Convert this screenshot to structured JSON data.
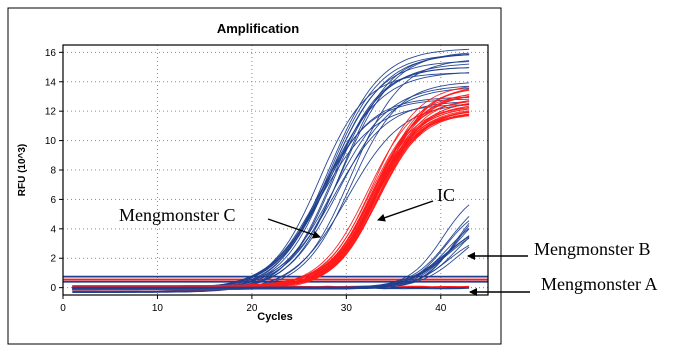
{
  "chart_data": {
    "type": "line",
    "title": "Amplification",
    "xlabel": "Cycles",
    "ylabel": "RFU (10^3)",
    "xlim": [
      0,
      45
    ],
    "ylim": [
      -0.5,
      16.5
    ],
    "x_ticks": [
      0,
      10,
      20,
      30,
      40
    ],
    "y_ticks": [
      0,
      2,
      4,
      6,
      8,
      10,
      12,
      14,
      16
    ],
    "grid": "dotted",
    "cycles": [
      1,
      43
    ],
    "groups": [
      {
        "key": "C",
        "color": "#1f3f8f",
        "count": 20,
        "midpoint": [
          26.8,
          30.6
        ],
        "slope": [
          0.34,
          0.4
        ],
        "plateau": [
          12.6,
          16.4
        ],
        "baseline": [
          -0.35,
          0.05
        ]
      },
      {
        "key": "IC",
        "color": "#ff1a1a",
        "count": 30,
        "midpoint": [
          32.3,
          33.7
        ],
        "slope": [
          0.39,
          0.45
        ],
        "plateau": [
          11.9,
          13.8
        ],
        "baseline": [
          -0.15,
          0.15
        ]
      },
      {
        "key": "B",
        "color": "#1f3f8f",
        "count": 14,
        "midpoint": [
          40.2,
          42.2
        ],
        "slope": [
          0.45,
          0.58
        ],
        "plateau": [
          3.6,
          6.8
        ],
        "baseline": [
          -0.1,
          0.05
        ]
      }
    ],
    "threshold_lines": [
      {
        "y": 0.75,
        "color": "#1f3f8f"
      },
      {
        "y": 0.55,
        "color": "#ff1a1a"
      },
      {
        "y": 0.4,
        "color": "#1f3f8f"
      }
    ],
    "baseline_traces": [
      {
        "y": 0.02,
        "color": "#1f3f8f"
      },
      {
        "y": 0.08,
        "color": "#ff1a1a"
      },
      {
        "y": -0.05,
        "color": "#1f3f8f"
      }
    ]
  },
  "annotations": {
    "mengmonster_c": "Mengmonster C",
    "ic": "IC",
    "mengmonster_b": "Mengmonster B",
    "mengmonster_a": "Mengmonster A"
  }
}
